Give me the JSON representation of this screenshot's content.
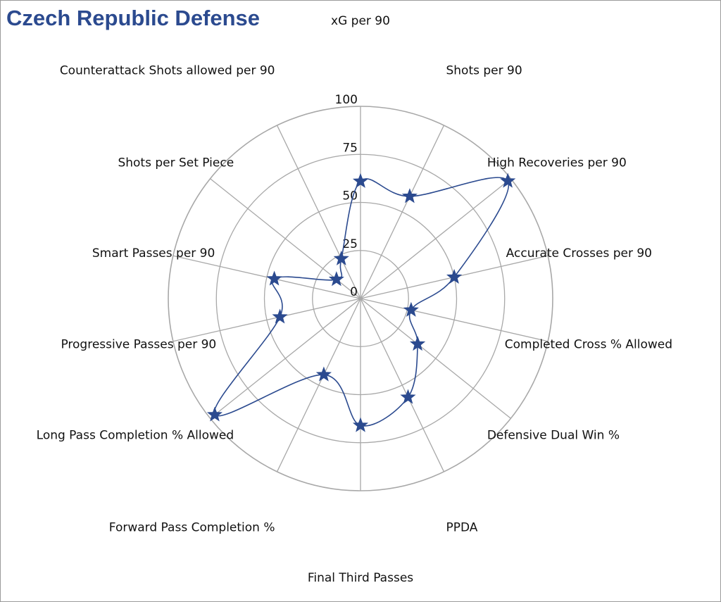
{
  "chart_data": {
    "type": "radar",
    "title": "Czech Republic Defense",
    "axes": [
      "xG per 90",
      "Shots per 90",
      "High Recoveries per 90",
      "Accurate Crosses per 90",
      "Completed Cross % Allowed",
      "Defensive Dual Win %",
      "PPDA",
      "Final Third Passes",
      "Forward Pass Completion %",
      "Long Pass Completion % Allowed",
      "Progressive Passes per 90",
      "Smart Passes per 90",
      "Shots per Set Piece",
      "Counterattack Shots allowed per 90"
    ],
    "values": [
      61,
      59,
      98,
      50,
      27,
      38,
      57,
      66,
      44,
      97,
      43,
      46,
      16,
      23
    ],
    "rlim": [
      0,
      100
    ],
    "ticks": [
      0,
      25,
      50,
      75,
      100
    ],
    "grid": true,
    "marker": "star",
    "colors": {
      "series": "#2b4a8f",
      "grid": "#a8a8a8",
      "title": "#2b4a8f"
    }
  }
}
